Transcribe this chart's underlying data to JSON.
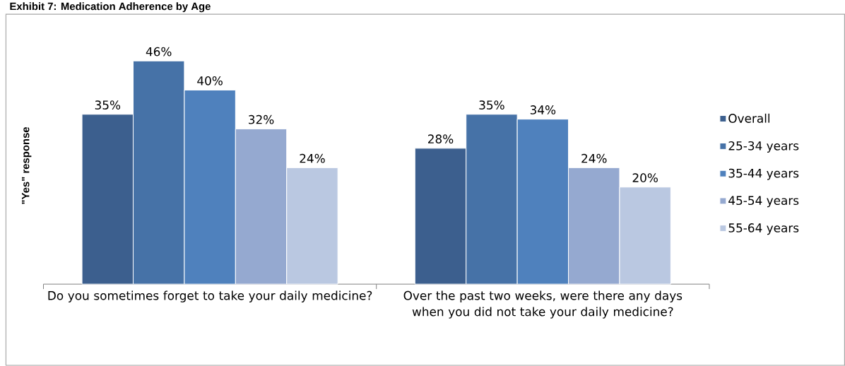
{
  "chart_data": {
    "type": "bar",
    "title": "Exhibit 7: Medication Adherence by Age",
    "ylabel": "\"Yes\" response",
    "categories": [
      "Do you sometimes forget to take your daily medicine?",
      "Over the past two weeks, were there any days when you did not take your daily medicine?"
    ],
    "series": [
      {
        "name": "Overall",
        "color": "#3c5f8e",
        "values": [
          35,
          28
        ],
        "value_labels": [
          "35%",
          "28%"
        ]
      },
      {
        "name": "25-34 years",
        "color": "#4672a7",
        "values": [
          46,
          35
        ],
        "value_labels": [
          "46%",
          "35%"
        ]
      },
      {
        "name": "35-44 years",
        "color": "#4f81bd",
        "values": [
          40,
          34
        ],
        "value_labels": [
          "40%",
          "34%"
        ]
      },
      {
        "name": "45-54 years",
        "color": "#95a9d0",
        "values": [
          32,
          24
        ],
        "value_labels": [
          "32%",
          "24%"
        ]
      },
      {
        "name": "55-64 years",
        "color": "#bac8e1",
        "values": [
          24,
          20
        ],
        "value_labels": [
          "24%",
          "20%"
        ]
      }
    ],
    "legend": "right"
  }
}
